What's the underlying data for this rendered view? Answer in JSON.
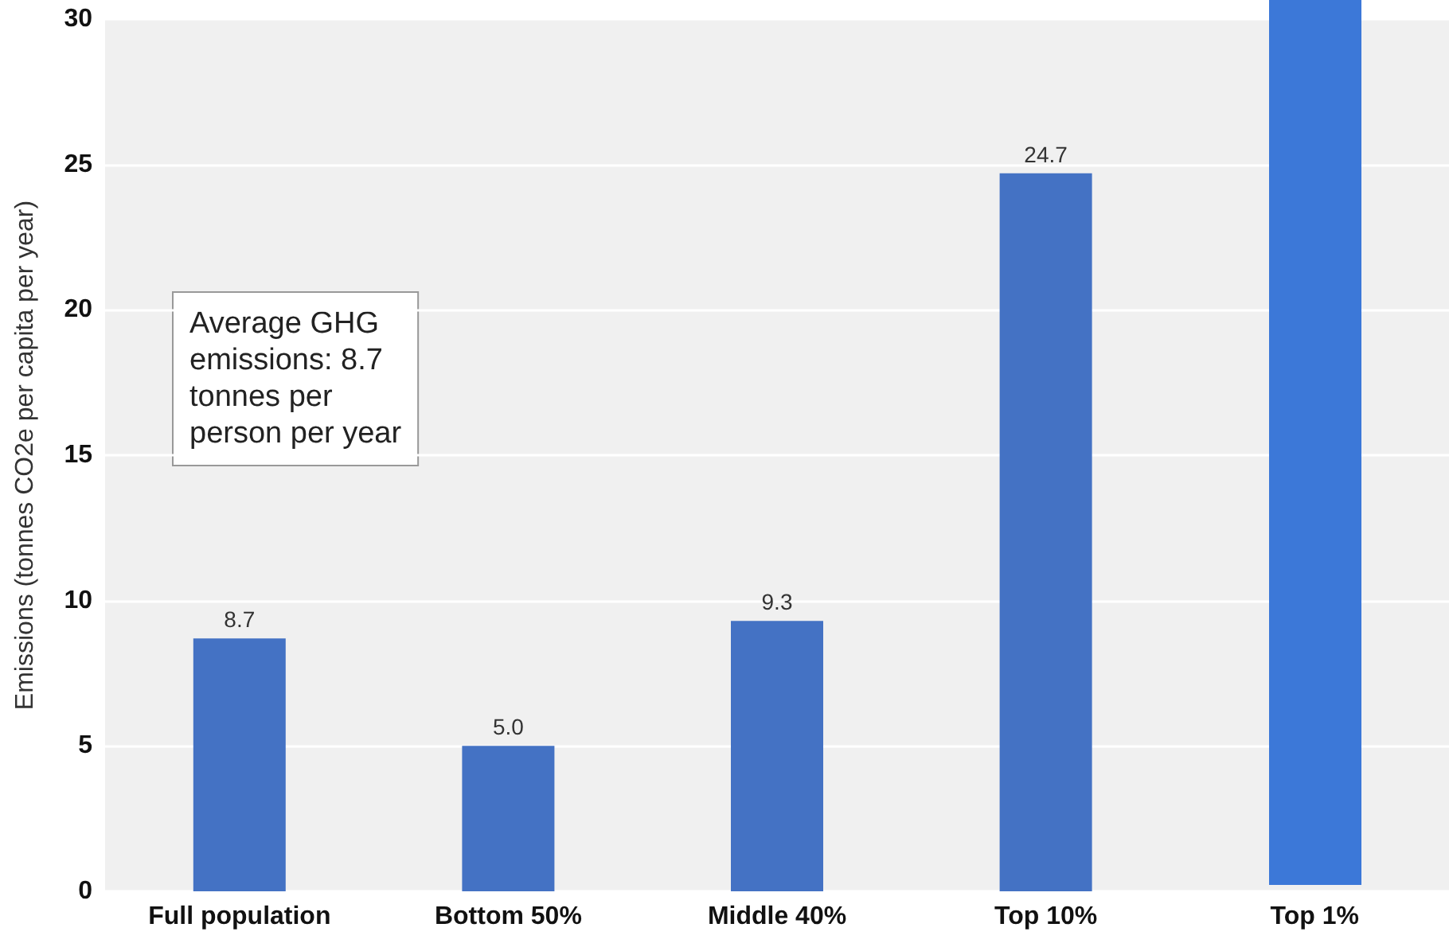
{
  "chart_data": {
    "type": "bar",
    "ylabel": "Emissions (tonnes CO2e per capita per year)",
    "categories": [
      "Full population",
      "Bottom 50%",
      "Middle 40%",
      "Top 10%",
      "Top 1%"
    ],
    "values": [
      8.7,
      5.0,
      9.3,
      24.7,
      null
    ],
    "value_labels": [
      "8.7",
      "5.0",
      "9.3",
      "24.7",
      null
    ],
    "colors": [
      "#4472c4",
      "#4472c4",
      "#4472c4",
      "#4472c4",
      "#3c78d8"
    ],
    "ylim": [
      0,
      30
    ],
    "yticks": [
      0,
      5,
      10,
      15,
      20,
      25,
      30
    ],
    "grid": "y",
    "annotations": [
      "Average GHG\nemissions: 8.7\ntonnes per\nperson per year"
    ]
  }
}
